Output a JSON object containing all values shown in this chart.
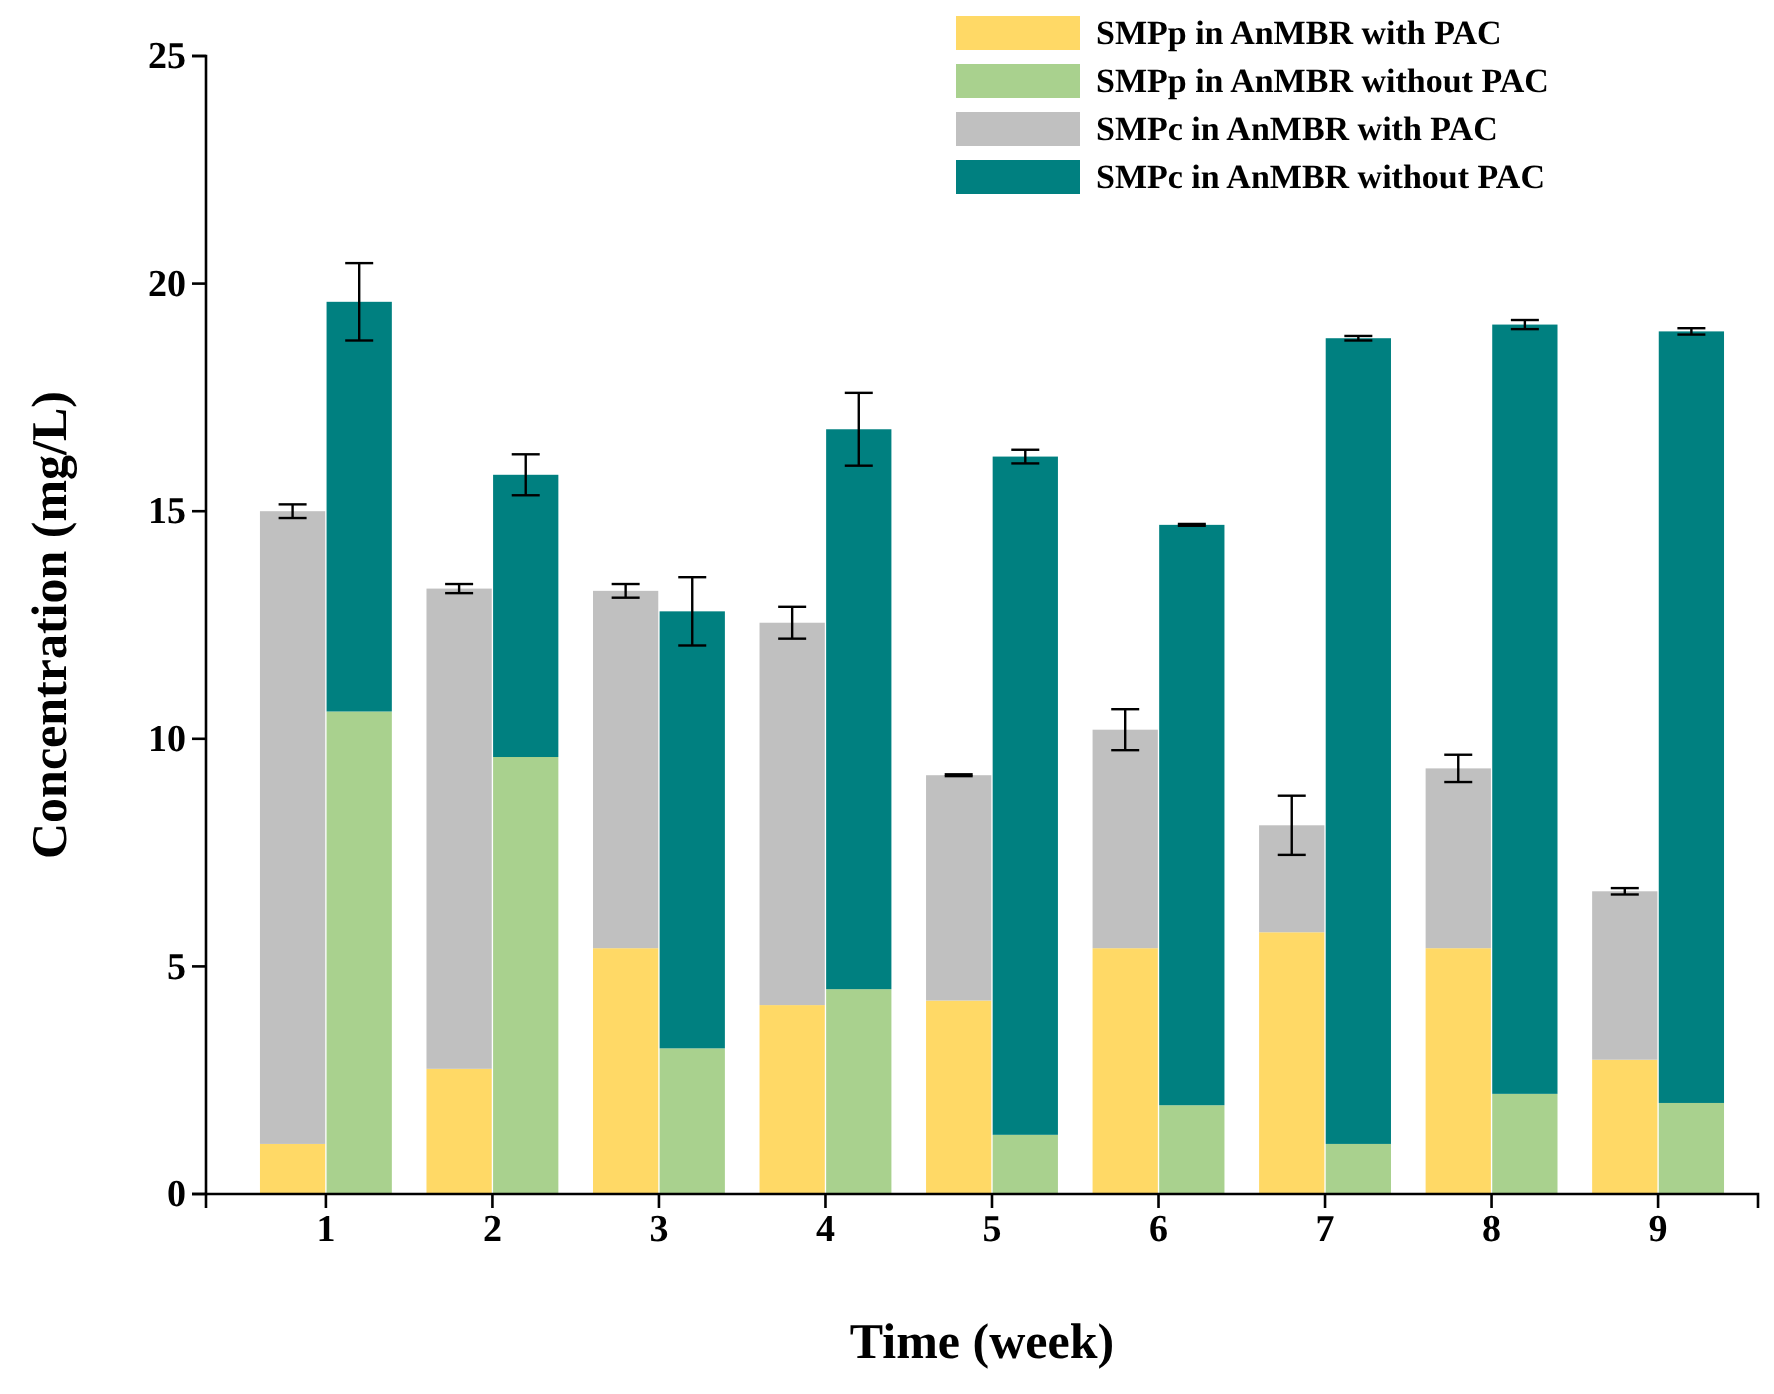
{
  "chart_data": {
    "type": "bar",
    "stacked": true,
    "xlabel": "Time (week)",
    "ylabel": "Concentration (mg/L)",
    "xlim": [
      0.28,
      9.6
    ],
    "xticks": [
      1,
      2,
      3,
      4,
      5,
      6,
      7,
      8,
      9
    ],
    "ylim": [
      0,
      25
    ],
    "yticks": [
      0,
      5,
      10,
      15,
      20,
      25
    ],
    "grid": false,
    "legend": "top right",
    "x": [
      0.8,
      1.2,
      1.8,
      2.2,
      2.8,
      3.2,
      3.8,
      4.2,
      4.8,
      5.2,
      5.8,
      6.2,
      6.8,
      7.2,
      7.8,
      8.2,
      8.8,
      9.2
    ],
    "series": [
      {
        "name": "SMPp in AnMBR with PAC",
        "color": "#ffd966",
        "values": [
          1.1,
          null,
          2.75,
          null,
          5.4,
          null,
          4.15,
          null,
          4.25,
          null,
          5.4,
          null,
          5.75,
          null,
          5.4,
          null,
          2.95,
          null
        ]
      },
      {
        "name": "SMPp in AnMBR without PAC",
        "color": "#a9d18e",
        "values": [
          null,
          10.6,
          null,
          9.6,
          null,
          3.2,
          null,
          4.5,
          null,
          1.3,
          null,
          1.95,
          null,
          1.1,
          null,
          2.2,
          null,
          2.0
        ]
      },
      {
        "name": "SMPc in AnMBR with PAC",
        "color": "#c0c0c0",
        "values": [
          13.9,
          null,
          10.55,
          null,
          7.85,
          null,
          8.4,
          null,
          4.95,
          null,
          4.8,
          null,
          2.35,
          null,
          3.95,
          null,
          3.7,
          null
        ],
        "errors": [
          0.15,
          null,
          0.1,
          null,
          0.15,
          null,
          0.35,
          null,
          0.02,
          null,
          0.45,
          null,
          0.65,
          null,
          0.3,
          null,
          0.07,
          null
        ]
      },
      {
        "name": "SMPc in AnMBR without PAC",
        "color": "#008080",
        "values": [
          null,
          9.0,
          null,
          6.2,
          null,
          9.6,
          null,
          12.3,
          null,
          14.9,
          null,
          12.75,
          null,
          17.7,
          null,
          16.9,
          null,
          16.95
        ],
        "errors": [
          null,
          0.85,
          null,
          0.45,
          null,
          0.75,
          null,
          0.8,
          null,
          0.15,
          null,
          0.02,
          null,
          0.05,
          null,
          0.1,
          null,
          0.07
        ]
      }
    ]
  }
}
